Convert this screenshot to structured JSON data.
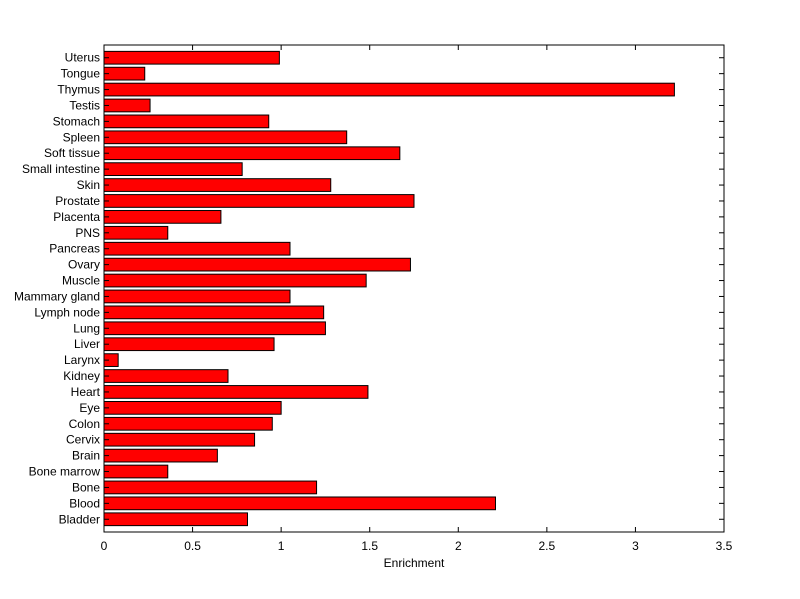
{
  "chart_data": {
    "type": "bar",
    "orientation": "horizontal",
    "title": "",
    "xlabel": "Enrichment",
    "ylabel": "",
    "xlim": [
      0,
      3.5
    ],
    "xticks": [
      "0",
      "0.5",
      "1",
      "1.5",
      "2",
      "2.5",
      "3",
      "3.5"
    ],
    "grid": false,
    "bar_color": "#ff0000",
    "bar_edge_color": "#000000",
    "categories": [
      "Uterus",
      "Tongue",
      "Thymus",
      "Testis",
      "Stomach",
      "Spleen",
      "Soft tissue",
      "Small intestine",
      "Skin",
      "Prostate",
      "Placenta",
      "PNS",
      "Pancreas",
      "Ovary",
      "Muscle",
      "Mammary gland",
      "Lymph node",
      "Lung",
      "Liver",
      "Larynx",
      "Kidney",
      "Heart",
      "Eye",
      "Colon",
      "Cervix",
      "Brain",
      "Bone marrow",
      "Bone",
      "Blood",
      "Bladder"
    ],
    "values": [
      0.99,
      0.23,
      3.22,
      0.26,
      0.93,
      1.37,
      1.67,
      0.78,
      1.28,
      1.75,
      0.66,
      0.36,
      1.05,
      1.73,
      1.48,
      1.05,
      1.24,
      1.25,
      0.96,
      0.08,
      0.7,
      1.49,
      1.0,
      0.95,
      0.85,
      0.64,
      0.36,
      1.2,
      2.21,
      0.81
    ]
  }
}
